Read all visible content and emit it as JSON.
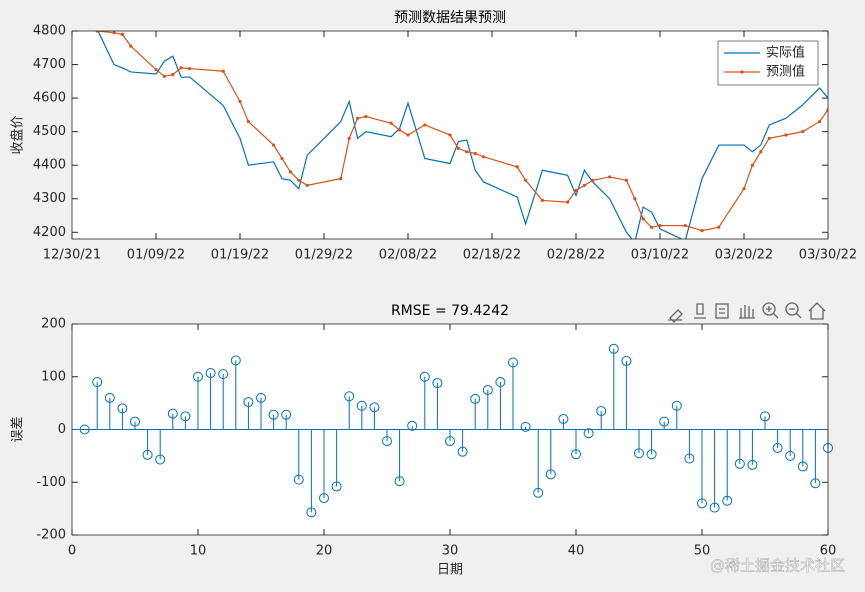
{
  "chart_data": [
    {
      "type": "line",
      "title": "预测数据结果预测",
      "y_label": "收盘价",
      "x": [
        "01/02/22",
        "01/04/22",
        "01/05/22",
        "01/06/22",
        "01/09/22",
        "01/10/22",
        "01/11/22",
        "01/12/22",
        "01/13/22",
        "01/17/22",
        "01/19/22",
        "01/20/22",
        "01/23/22",
        "01/24/22",
        "01/25/22",
        "01/26/22",
        "01/27/22",
        "01/31/22",
        "02/01/22",
        "02/02/22",
        "02/03/22",
        "02/06/22",
        "02/07/22",
        "02/08/22",
        "02/10/22",
        "02/13/22",
        "02/14/22",
        "02/15/22",
        "02/16/22",
        "02/17/22",
        "02/21/22",
        "02/22/22",
        "02/24/22",
        "02/27/22",
        "02/28/22",
        "03/01/22",
        "03/02/22",
        "03/04/22",
        "03/06/22",
        "03/07/22",
        "03/08/22",
        "03/09/22",
        "03/10/22",
        "03/13/22",
        "03/15/22",
        "03/17/22",
        "03/20/22",
        "03/21/22",
        "03/22/22",
        "03/23/22",
        "03/25/22",
        "03/27/22",
        "03/29/22",
        "03/30/22"
      ],
      "series": [
        {
          "name": "实际值",
          "color": "#0072BD",
          "marker": false,
          "values": [
            4805,
            4700,
            4690,
            4678,
            4672,
            4710,
            4725,
            4662,
            4663,
            4578,
            4480,
            4400,
            4410,
            4360,
            4355,
            4330,
            4430,
            4530,
            4590,
            4480,
            4500,
            4485,
            4510,
            4585,
            4420,
            4405,
            4470,
            4475,
            4385,
            4350,
            4305,
            4225,
            4385,
            4370,
            4310,
            4385,
            4350,
            4300,
            4200,
            4170,
            4275,
            4260,
            4210,
            4175,
            4360,
            4460,
            4460,
            4440,
            4460,
            4520,
            4540,
            4580,
            4630,
            4600
          ]
        },
        {
          "name": "预测值",
          "color": "#D95319",
          "marker": true,
          "values": [
            4800,
            4795,
            4790,
            4755,
            4685,
            4665,
            4670,
            4690,
            4688,
            4680,
            4590,
            4530,
            4460,
            4420,
            4380,
            4355,
            4340,
            4360,
            4480,
            4540,
            4545,
            4525,
            4505,
            4490,
            4520,
            4490,
            4450,
            4440,
            4435,
            4425,
            4395,
            4355,
            4295,
            4290,
            4325,
            4340,
            4355,
            4365,
            4355,
            4300,
            4240,
            4215,
            4220,
            4220,
            4205,
            4215,
            4330,
            4400,
            4440,
            4480,
            4490,
            4500,
            4530,
            4565
          ]
        }
      ],
      "xlim": [
        "12/30/21",
        "03/30/22"
      ],
      "xticks": [
        "12/30/21",
        "01/09/22",
        "01/19/22",
        "01/29/22",
        "02/08/22",
        "02/18/22",
        "02/28/22",
        "03/10/22",
        "03/20/22",
        "03/30/22"
      ],
      "ylim": [
        4180,
        4800
      ],
      "yticks": [
        4200,
        4300,
        4400,
        4500,
        4600,
        4700,
        4800
      ],
      "legend": "northeast",
      "grid": false
    },
    {
      "type": "stem",
      "title": "RMSE = 79.4242",
      "x_label": "日期",
      "y_label": "误差",
      "color": "#0072BD",
      "x": [
        1,
        2,
        3,
        4,
        5,
        6,
        7,
        8,
        9,
        10,
        11,
        12,
        13,
        14,
        15,
        16,
        17,
        18,
        19,
        20,
        21,
        22,
        23,
        24,
        25,
        26,
        27,
        28,
        29,
        30,
        31,
        32,
        33,
        34,
        35,
        36,
        37,
        38,
        39,
        40,
        41,
        42,
        43,
        44,
        45,
        46,
        47,
        48,
        49,
        50,
        51,
        52,
        53,
        54,
        55,
        56,
        57,
        58,
        59,
        60
      ],
      "values": [
        0,
        90,
        60,
        40,
        15,
        -48,
        -57,
        30,
        25,
        100,
        107,
        105,
        131,
        52,
        60,
        28,
        28,
        -95,
        -157,
        -130,
        -108,
        63,
        45,
        42,
        -22,
        -98,
        7,
        100,
        88,
        -22,
        -42,
        58,
        75,
        90,
        127,
        5,
        -120,
        -85,
        20,
        -47,
        -7,
        35,
        153,
        130,
        -45,
        -47,
        15,
        45,
        -55,
        -140,
        -148,
        -135,
        -65,
        -67,
        25,
        -35,
        -50,
        -70,
        -102,
        -35
      ],
      "xlim": [
        0,
        60
      ],
      "xticks": [
        0,
        10,
        20,
        30,
        40,
        50,
        60
      ],
      "ylim": [
        -200,
        200
      ],
      "yticks": [
        -200,
        -100,
        0,
        100,
        200
      ],
      "grid": false
    }
  ],
  "watermark": "@稀土掘金技术社区"
}
